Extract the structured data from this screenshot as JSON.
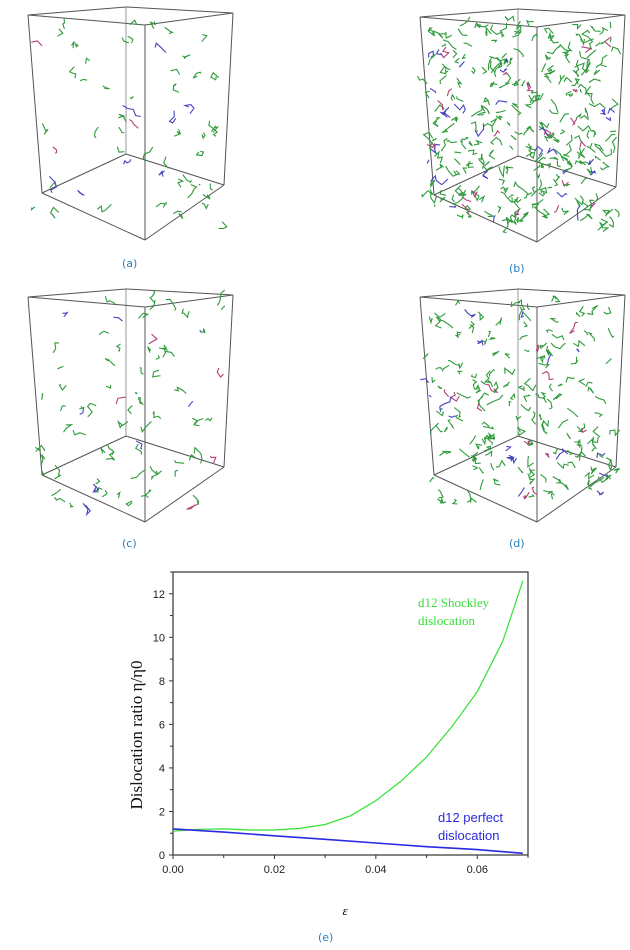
{
  "panels": [
    {
      "label": "(a)"
    },
    {
      "label": "(b)"
    },
    {
      "label": "(c)"
    },
    {
      "label": "(d)"
    },
    {
      "label": "(e)"
    }
  ],
  "colors": {
    "shockley": "#33e033",
    "perfect": "#2a2ae0",
    "label": "#2a7fb8",
    "box": "#555555"
  },
  "chart_data": {
    "type": "line",
    "title": "",
    "xlabel": "ε",
    "ylabel": "Dislocation ratio η/η0",
    "xlim": [
      0,
      0.07
    ],
    "ylim": [
      0,
      13
    ],
    "xticks": [
      "0.00",
      "0.02",
      "0.04",
      "0.06"
    ],
    "xtick_values": [
      0,
      0.02,
      0.04,
      0.06
    ],
    "yticks": [
      "0",
      "2",
      "4",
      "6",
      "8",
      "10",
      "12"
    ],
    "ytick_values": [
      0,
      2,
      4,
      6,
      8,
      10,
      12
    ],
    "series": [
      {
        "name": "d12 Shockley dislocation",
        "label_lines": [
          "d12 Shockley",
          "dislocation"
        ],
        "color": "#33e033",
        "x": [
          0,
          0.005,
          0.01,
          0.015,
          0.02,
          0.025,
          0.03,
          0.035,
          0.04,
          0.045,
          0.05,
          0.055,
          0.06,
          0.065,
          0.069
        ],
        "y": [
          1.1,
          1.18,
          1.2,
          1.15,
          1.15,
          1.22,
          1.4,
          1.8,
          2.5,
          3.4,
          4.5,
          5.9,
          7.5,
          9.8,
          12.6
        ]
      },
      {
        "name": "d12 perfect dislocation",
        "label_lines": [
          "d12 perfect",
          "dislocation"
        ],
        "color": "#2a2ae0",
        "x": [
          0,
          0.01,
          0.02,
          0.03,
          0.04,
          0.05,
          0.06,
          0.069
        ],
        "y": [
          1.2,
          1.05,
          0.88,
          0.72,
          0.55,
          0.38,
          0.25,
          0.08
        ]
      }
    ],
    "grid": false
  }
}
